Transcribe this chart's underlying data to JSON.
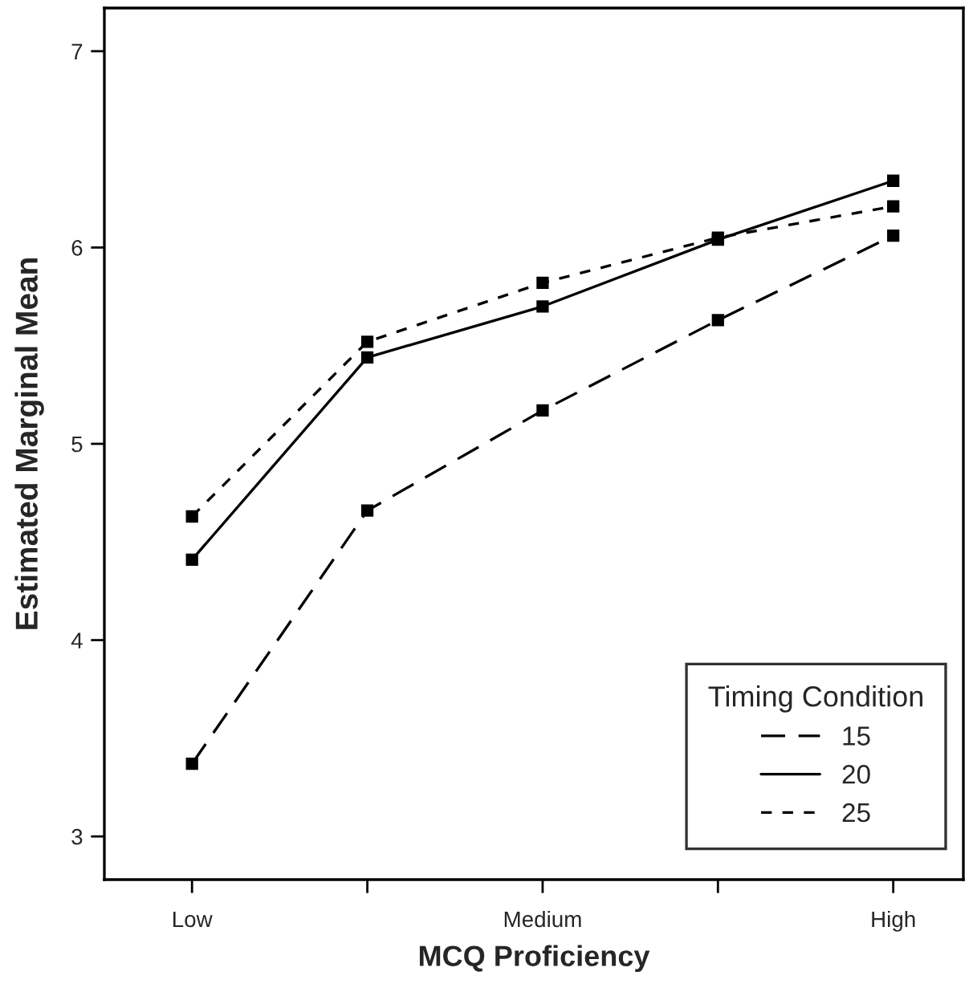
{
  "chart_data": {
    "type": "line",
    "xlabel": "MCQ Proficiency",
    "ylabel": "Estimated Marginal Mean",
    "legend_title": "Timing Condition",
    "legend": "bottom right",
    "marker": "square",
    "grid": false,
    "categories": [
      "Low",
      null,
      "Medium",
      null,
      "High"
    ],
    "ylim": [
      2.78,
      7.22
    ],
    "yticks": [
      3,
      4,
      5,
      6,
      7
    ],
    "series": [
      {
        "name": "15",
        "color": "#000000",
        "line_style": "dashed",
        "values": [
          3.37,
          4.66,
          5.17,
          5.63,
          6.06
        ]
      },
      {
        "name": "20",
        "color": "#000000",
        "line_style": "solid",
        "values": [
          4.41,
          5.44,
          5.7,
          6.04,
          6.34
        ]
      },
      {
        "name": "25",
        "color": "#000000",
        "line_style": "dotted",
        "values": [
          4.63,
          5.52,
          5.82,
          6.05,
          6.21
        ]
      }
    ]
  }
}
